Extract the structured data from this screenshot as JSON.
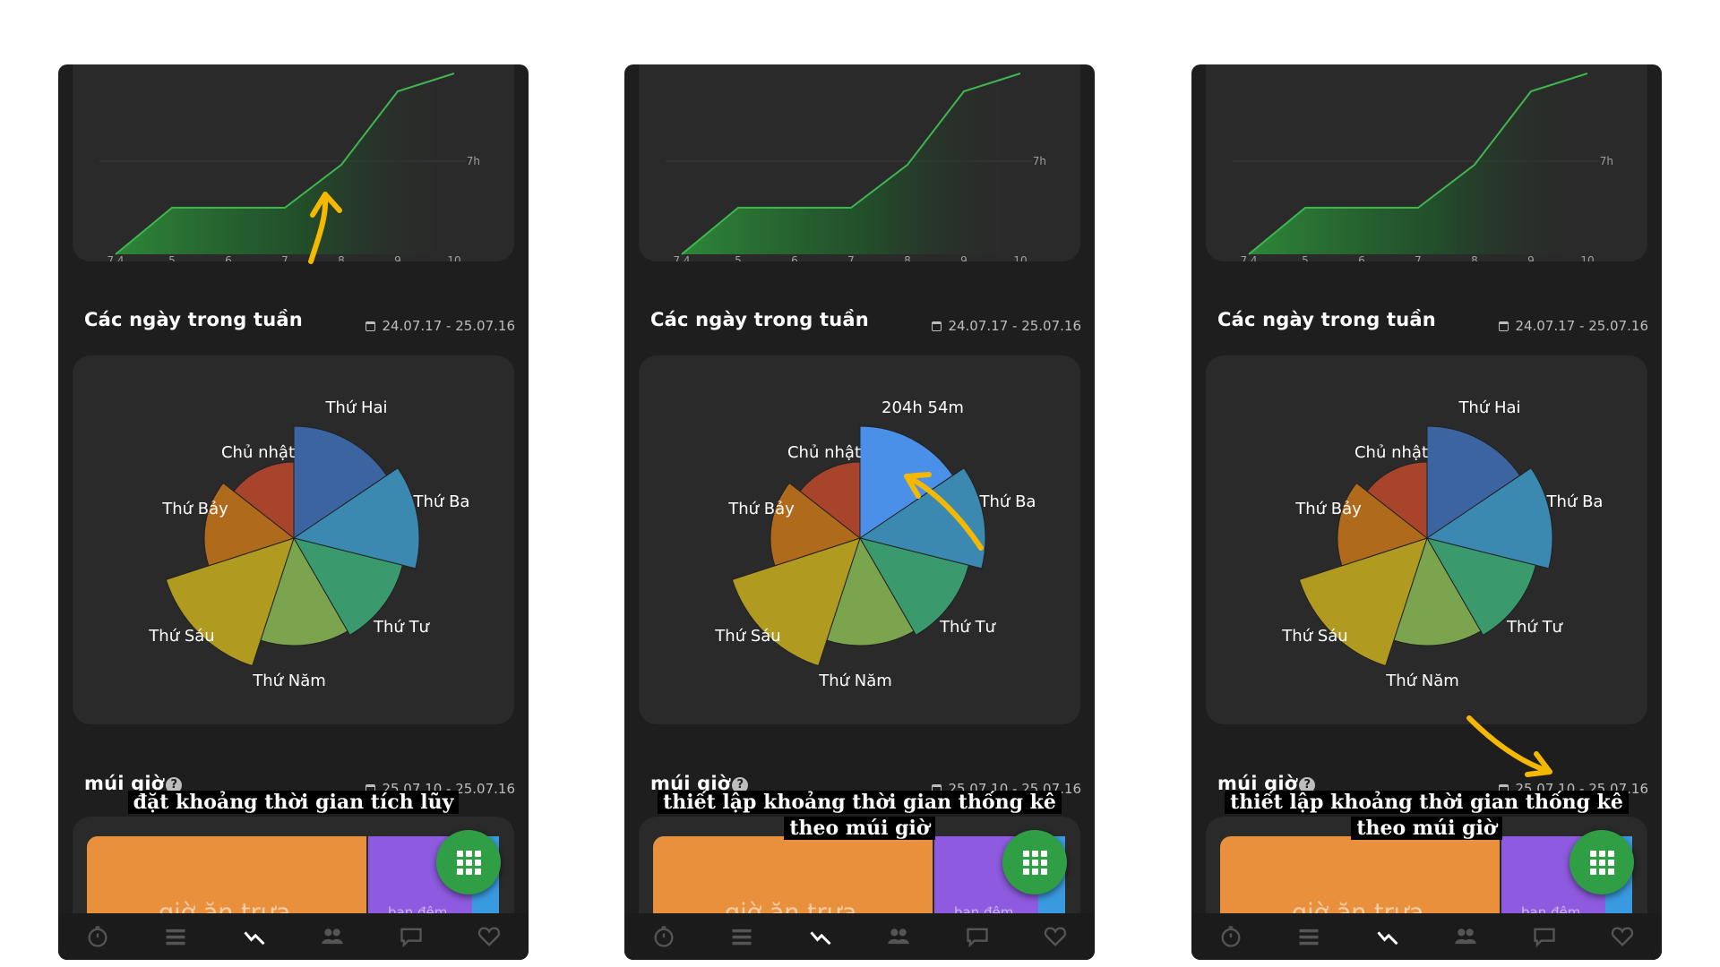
{
  "shared": {
    "section_days_title": "Các ngày trong tuần",
    "section_days_range": "24.07.17 - 25.07.16",
    "section_tz_title": "múi giờ",
    "section_tz_range": "25.07.10 - 25.07.16",
    "help_glyph": "?",
    "top_chart_ylabel": "7h",
    "top_chart_xticks": [
      "7.4",
      "5",
      "6",
      "7",
      "8",
      "9",
      "10"
    ],
    "tz_blocks": [
      {
        "label": "giờ ăn trưa",
        "color": "#e8903c"
      },
      {
        "label": "ban đêm",
        "color": "#8e5be0"
      },
      {
        "label": "",
        "color": "#3a9ae0"
      }
    ],
    "nav_items": [
      "stopwatch-icon",
      "list-icon",
      "stats-icon",
      "people-icon",
      "chat-icon",
      "heart-icon"
    ],
    "accent_color": "#2f9e44",
    "annotation_color": "#f5b800"
  },
  "panels": [
    {
      "caption_lines": [
        "đặt khoảng thời gian tích lũy"
      ],
      "pie_top_label": "Thứ Hai",
      "pie_highlight": false
    },
    {
      "caption_lines": [
        "thiết lập khoảng thời gian thống kê",
        "theo múi giờ"
      ],
      "pie_top_label": "204h 54m",
      "pie_highlight": true
    },
    {
      "caption_lines": [
        "thiết lập khoảng thời gian thống kê",
        "theo múi giờ"
      ],
      "pie_top_label": "Thứ Hai",
      "pie_highlight": false
    }
  ],
  "chart_data": [
    {
      "type": "area",
      "x": [
        "7.4",
        "5",
        "6",
        "7",
        "8",
        "9",
        "10"
      ],
      "ylabel": "7h"
    },
    {
      "type": "pie",
      "categories": [
        "Thứ Hai",
        "Thứ Ba",
        "Thứ Tư",
        "Thứ Năm",
        "Thứ Sáu",
        "Thứ Bảy",
        "Chủ nhật"
      ],
      "colors": [
        "#3b64a0",
        "#3b88b0",
        "#3a9a6e",
        "#7aa54e",
        "#b09a20",
        "#b06a1c",
        "#a8432c"
      ]
    }
  ]
}
